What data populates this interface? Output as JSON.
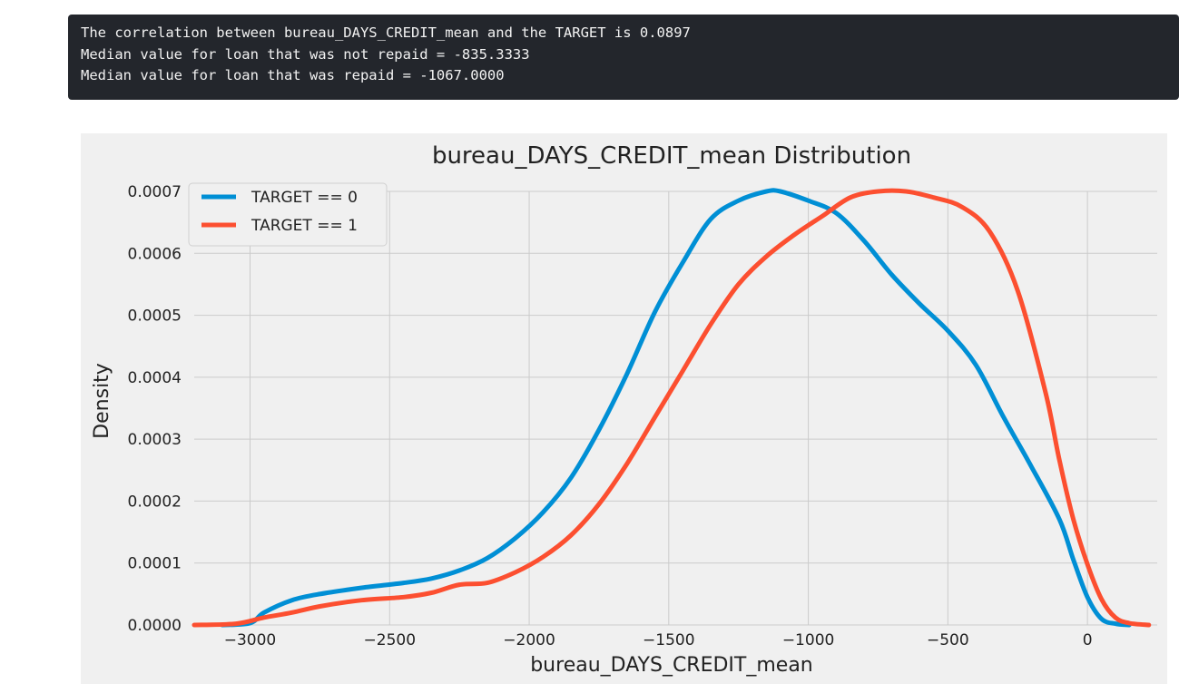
{
  "output": {
    "lines": [
      "The correlation between bureau_DAYS_CREDIT_mean and the TARGET is 0.0897",
      "Median value for loan that was not repaid = -835.3333",
      "Median value for loan that was repaid = -1067.0000"
    ]
  },
  "chart_data": {
    "type": "line",
    "title": "bureau_DAYS_CREDIT_mean Distribution",
    "xlabel": "bureau_DAYS_CREDIT_mean",
    "ylabel": "Density",
    "xlim": [
      -3200,
      250
    ],
    "ylim": [
      0,
      0.0007
    ],
    "xticks": [
      -3000,
      -2500,
      -2000,
      -1500,
      -1000,
      -500,
      0
    ],
    "xtick_labels": [
      "−3000",
      "−2500",
      "−2000",
      "−1500",
      "−1000",
      "−500",
      "0"
    ],
    "yticks": [
      0,
      0.0001,
      0.0002,
      0.0003,
      0.0004,
      0.0005,
      0.0006,
      0.0007
    ],
    "ytick_labels": [
      "0.0000",
      "0.0001",
      "0.0002",
      "0.0003",
      "0.0004",
      "0.0005",
      "0.0006",
      "0.0007"
    ],
    "grid": true,
    "legend_position": "upper-left",
    "series": [
      {
        "name": "TARGET == 0",
        "color": "#008fd5",
        "x": [
          -3100,
          -3000,
          -2950,
          -2850,
          -2750,
          -2600,
          -2450,
          -2350,
          -2250,
          -2150,
          -2050,
          -1950,
          -1850,
          -1750,
          -1650,
          -1550,
          -1450,
          -1350,
          -1250,
          -1150,
          -1100,
          -1000,
          -900,
          -800,
          -700,
          -600,
          -500,
          -400,
          -300,
          -200,
          -100,
          -50,
          0,
          50,
          100,
          150
        ],
        "y": [
          0,
          3e-06,
          2e-05,
          4e-05,
          5e-05,
          6e-05,
          6.8e-05,
          7.5e-05,
          8.8e-05,
          0.000108,
          0.00014,
          0.000182,
          0.000238,
          0.000315,
          0.000405,
          0.000505,
          0.000585,
          0.000655,
          0.000685,
          0.0007,
          0.0007,
          0.000685,
          0.000665,
          0.00062,
          0.000565,
          0.000518,
          0.000475,
          0.00042,
          0.000335,
          0.000255,
          0.00017,
          0.000105,
          4.5e-05,
          1e-05,
          2e-06,
          0
        ],
        "values": [
          0,
          3e-06,
          2e-05,
          4e-05,
          5e-05,
          6e-05,
          6.8e-05,
          7.5e-05,
          8.8e-05,
          0.000108,
          0.00014,
          0.000182,
          0.000238,
          0.000315,
          0.000405,
          0.000505,
          0.000585,
          0.000655,
          0.000685,
          0.0007,
          0.0007,
          0.000685,
          0.000665,
          0.00062,
          0.000565,
          0.000518,
          0.000475,
          0.00042,
          0.000335,
          0.000255,
          0.00017,
          0.000105,
          4.5e-05,
          1e-05,
          2e-06,
          0
        ]
      },
      {
        "name": "TARGET == 1",
        "color": "#fc4f30",
        "x": [
          -3200,
          -3050,
          -2950,
          -2850,
          -2750,
          -2600,
          -2450,
          -2350,
          -2250,
          -2150,
          -2050,
          -1950,
          -1850,
          -1750,
          -1650,
          -1550,
          -1450,
          -1350,
          -1250,
          -1150,
          -1050,
          -950,
          -850,
          -750,
          -650,
          -550,
          -450,
          -350,
          -250,
          -150,
          -100,
          -50,
          0,
          50,
          100,
          150,
          220
        ],
        "y": [
          0,
          2e-06,
          1.2e-05,
          2e-05,
          3e-05,
          4e-05,
          4.5e-05,
          5.2e-05,
          6.5e-05,
          6.8e-05,
          8.5e-05,
          0.00011,
          0.000145,
          0.000195,
          0.00026,
          0.000335,
          0.00041,
          0.000485,
          0.00055,
          0.000595,
          0.00063,
          0.00066,
          0.00069,
          0.0007,
          0.0007,
          0.00069,
          0.000675,
          0.000635,
          0.00054,
          0.000375,
          0.000265,
          0.00017,
          9.8e-05,
          4.2e-05,
          1.2e-05,
          3e-06,
          0
        ],
        "values": [
          0,
          2e-06,
          1.2e-05,
          2e-05,
          3e-05,
          4e-05,
          4.5e-05,
          5.2e-05,
          6.5e-05,
          6.8e-05,
          8.5e-05,
          0.00011,
          0.000145,
          0.000195,
          0.00026,
          0.000335,
          0.00041,
          0.000485,
          0.00055,
          0.000595,
          0.00063,
          0.00066,
          0.00069,
          0.0007,
          0.0007,
          0.00069,
          0.000675,
          0.000635,
          0.00054,
          0.000375,
          0.000265,
          0.00017,
          9.8e-05,
          4.2e-05,
          1.2e-05,
          3e-06,
          0
        ]
      }
    ]
  }
}
